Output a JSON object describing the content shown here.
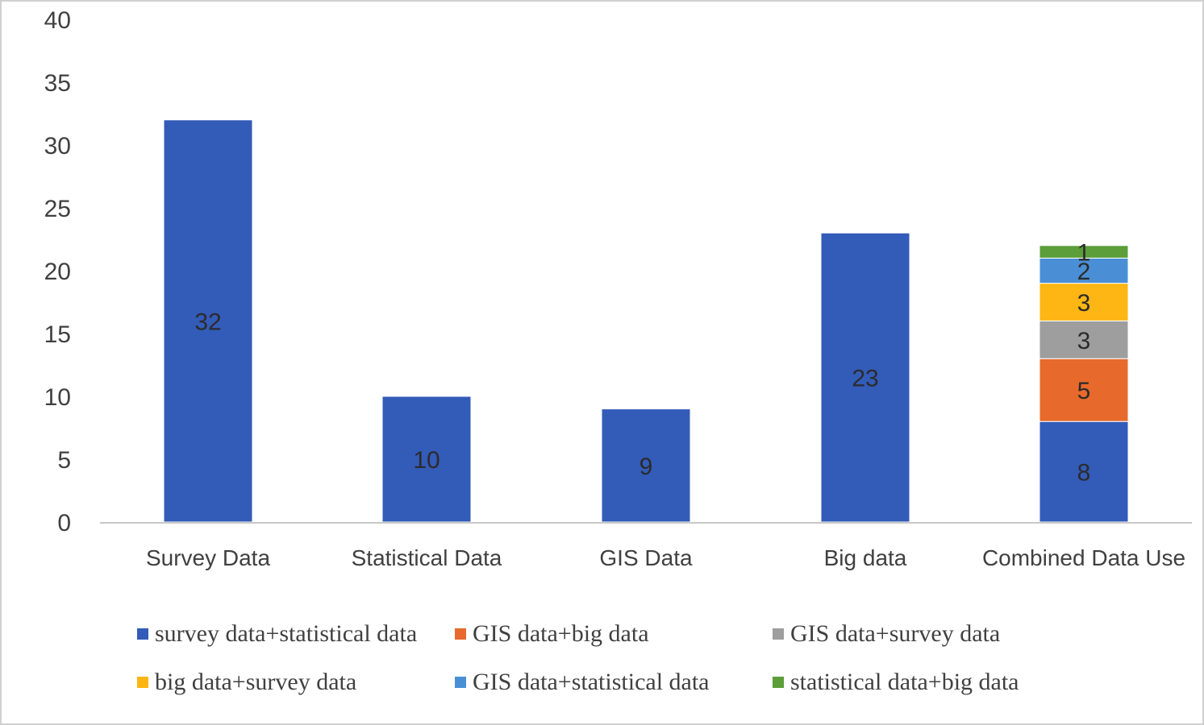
{
  "chart_data": {
    "type": "bar",
    "stacked": true,
    "categories": [
      "Survey Data",
      "Statistical Data",
      "GIS Data",
      "Big data",
      "Combined Data Use"
    ],
    "series": [
      {
        "name": "survey data+statistical data",
        "color": "#335bb8",
        "values": [
          32,
          10,
          9,
          23,
          8
        ]
      },
      {
        "name": "GIS data+big data",
        "color": "#e8692c",
        "values": [
          0,
          0,
          0,
          0,
          5
        ]
      },
      {
        "name": "GIS data+survey data",
        "color": "#9e9e9e",
        "values": [
          0,
          0,
          0,
          0,
          3
        ]
      },
      {
        "name": "big data+survey data",
        "color": "#fdb614",
        "values": [
          0,
          0,
          0,
          0,
          3
        ]
      },
      {
        "name": "GIS data+statistical data",
        "color": "#4a8fd6",
        "values": [
          0,
          0,
          0,
          0,
          2
        ]
      },
      {
        "name": "statistical data+big data",
        "color": "#5b9e3a",
        "values": [
          0,
          0,
          0,
          0,
          1
        ]
      }
    ],
    "yticks": [
      0,
      5,
      10,
      15,
      20,
      25,
      30,
      35,
      40
    ],
    "ylim": [
      0,
      40
    ],
    "title": "",
    "xlabel": "",
    "ylabel": "",
    "grid": false,
    "legend_position": "bottom",
    "data_labels": true
  }
}
